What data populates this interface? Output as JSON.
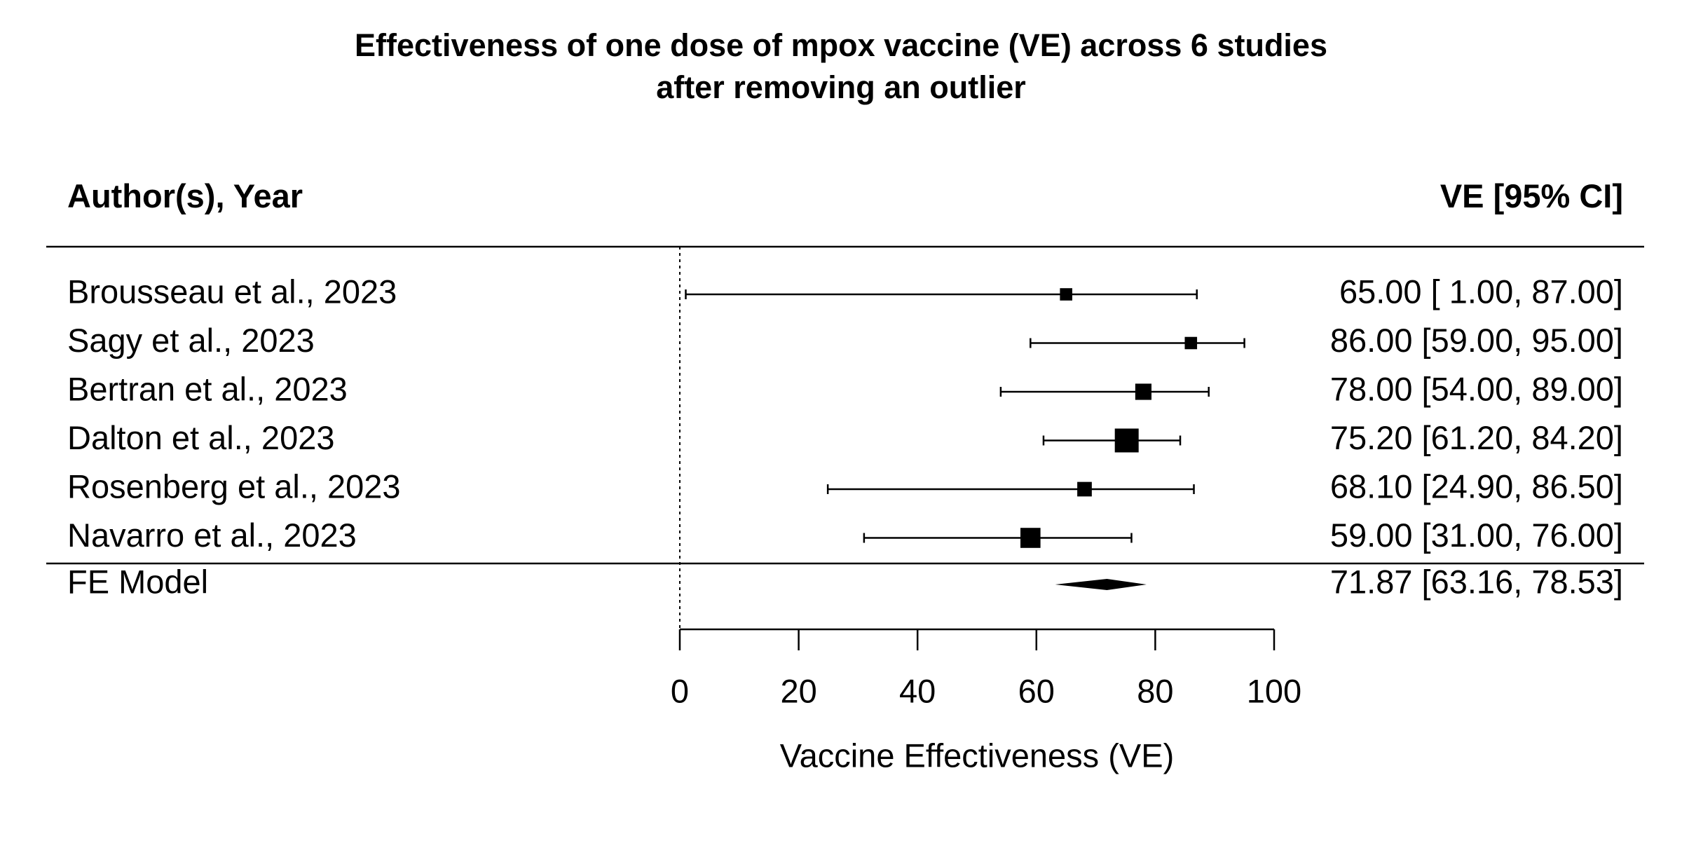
{
  "chart_data": {
    "type": "forest",
    "title_lines": [
      "Effectiveness of one dose of mpox vaccine (VE) across 6 studies",
      "after removing an outlier"
    ],
    "left_header": "Author(s), Year",
    "right_header": "VE [95% CI]",
    "xlabel": "Vaccine Effectiveness (VE)",
    "xlim": [
      0,
      100
    ],
    "xticks": [
      0,
      20,
      40,
      60,
      80,
      100
    ],
    "reference_line": 0,
    "studies": [
      {
        "label": "Brousseau et al., 2023",
        "ve": 65.0,
        "lower": 1.0,
        "upper": 87.0,
        "weight": 1,
        "ci_text": "65.00 [ 1.00, 87.00]"
      },
      {
        "label": "Sagy et al., 2023",
        "ve": 86.0,
        "lower": 59.0,
        "upper": 95.0,
        "weight": 1,
        "ci_text": "86.00 [59.00, 95.00]"
      },
      {
        "label": "Bertran et al., 2023",
        "ve": 78.0,
        "lower": 54.0,
        "upper": 89.0,
        "weight": 3,
        "ci_text": "78.00 [54.00, 89.00]"
      },
      {
        "label": "Dalton et al., 2023",
        "ve": 75.2,
        "lower": 61.2,
        "upper": 84.2,
        "weight": 10,
        "ci_text": "75.20 [61.20, 84.20]"
      },
      {
        "label": "Rosenberg et al., 2023",
        "ve": 68.1,
        "lower": 24.9,
        "upper": 86.5,
        "weight": 2,
        "ci_text": "68.10 [24.90, 86.50]"
      },
      {
        "label": "Navarro et al., 2023",
        "ve": 59.0,
        "lower": 31.0,
        "upper": 76.0,
        "weight": 6,
        "ci_text": "59.00 [31.00, 76.00]"
      }
    ],
    "summary": {
      "label": "FE Model",
      "ve": 71.87,
      "lower": 63.16,
      "upper": 78.53,
      "ci_text": "71.87 [63.16, 78.53]"
    }
  }
}
